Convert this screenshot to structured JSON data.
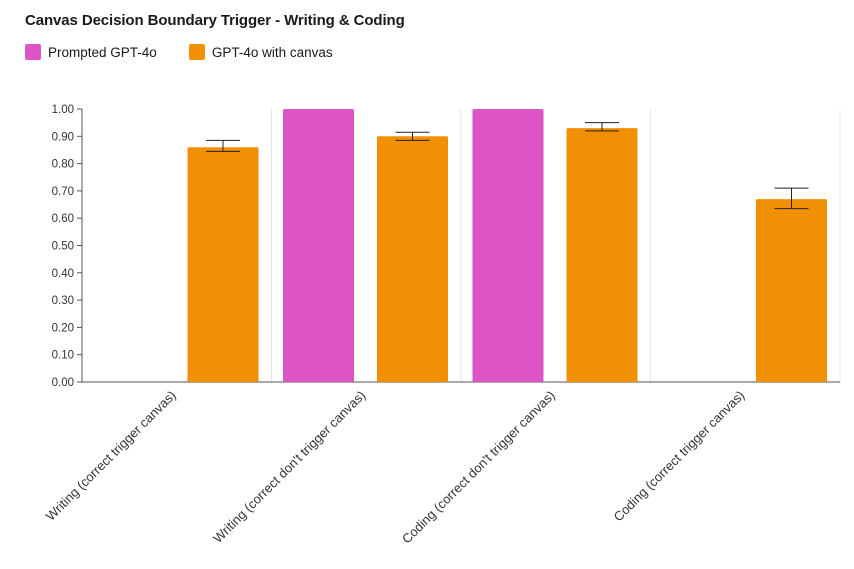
{
  "colors": {
    "prompted": "#dd55c5",
    "canvas": "#f19005",
    "grid": "#e6e6e6",
    "axis": "#555555"
  },
  "chart_data": {
    "type": "bar",
    "title": "Canvas Decision Boundary Trigger - Writing & Coding",
    "categories": [
      "Writing (correct trigger canvas)",
      "Writing (correct don't trigger canvas)",
      "Coding (correct don't trigger canvas)",
      "Coding (correct trigger canvas)"
    ],
    "series": [
      {
        "name": "Prompted GPT-4o",
        "color": "#dd55c5",
        "values": [
          null,
          1.0,
          1.0,
          null
        ],
        "errors": [
          null,
          null,
          null,
          null
        ]
      },
      {
        "name": "GPT-4o with canvas",
        "color": "#f19005",
        "values": [
          0.86,
          0.9,
          0.93,
          0.67
        ],
        "errors": [
          [
            0.845,
            0.885
          ],
          [
            0.885,
            0.915
          ],
          [
            0.92,
            0.95
          ],
          [
            0.635,
            0.71
          ]
        ]
      }
    ],
    "yticks": [
      "0.00",
      "0.10",
      "0.20",
      "0.30",
      "0.40",
      "0.50",
      "0.60",
      "0.70",
      "0.80",
      "0.90",
      "1.00"
    ],
    "ylim": [
      0,
      1
    ],
    "xlabel": "",
    "ylabel": "",
    "legend_position": "top-left"
  }
}
